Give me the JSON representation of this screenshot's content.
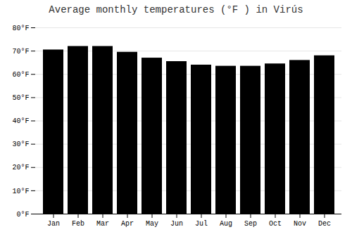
{
  "chart_data": {
    "type": "bar",
    "title": "Average monthly temperatures (°F ) in Virús",
    "categories": [
      "Jan",
      "Feb",
      "Mar",
      "Apr",
      "May",
      "Jun",
      "Jul",
      "Aug",
      "Sep",
      "Oct",
      "Nov",
      "Dec"
    ],
    "values": [
      70.5,
      72.0,
      72.0,
      69.5,
      67.0,
      65.5,
      64.0,
      63.5,
      63.5,
      64.5,
      66.0,
      68.0
    ],
    "ylim": [
      0,
      80
    ],
    "yticks": [
      {
        "value": 0,
        "label": "0°F"
      },
      {
        "value": 10,
        "label": "10°F"
      },
      {
        "value": 20,
        "label": "20°F"
      },
      {
        "value": 30,
        "label": "30°F"
      },
      {
        "value": 40,
        "label": "40°F"
      },
      {
        "value": 50,
        "label": "50°F"
      },
      {
        "value": 60,
        "label": "60°F"
      },
      {
        "value": 70,
        "label": "70°F"
      },
      {
        "value": 80,
        "label": "80°F"
      }
    ],
    "grid": true
  }
}
